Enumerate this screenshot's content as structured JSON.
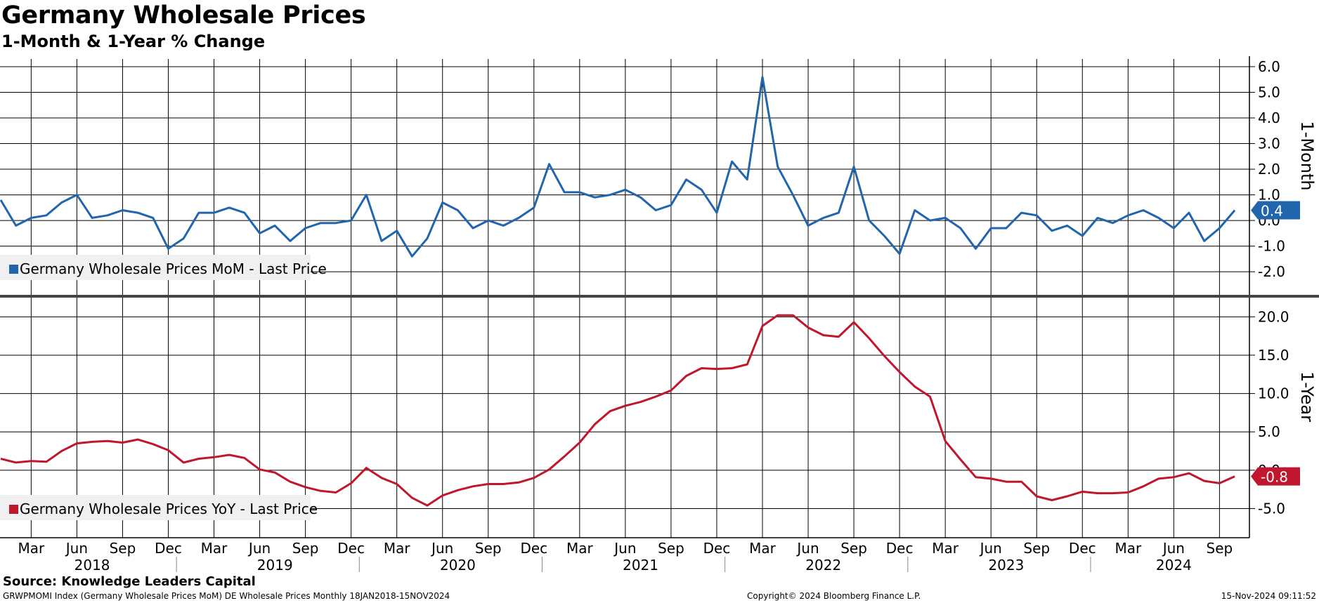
{
  "header": {
    "title": "Germany Wholesale Prices",
    "subtitle": "1-Month & 1-Year % Change"
  },
  "footer": {
    "source": "Source: Knowledge Leaders Capital",
    "ticker_line": "GRWPMOMI Index (Germany Wholesale Prices MoM) DE Wholesale Prices  Monthly 18JAN2018-15NOV2024",
    "copyright": "Copyright© 2024 Bloomberg Finance L.P.",
    "timestamp": "15-Nov-2024 09:11:52"
  },
  "colors": {
    "mom": "#2166ac",
    "yoy": "#c0172e",
    "grid": "#000000"
  },
  "chart_data": [
    {
      "type": "line",
      "ylabel": "1-Month",
      "ylim": [
        -2.9,
        6.3
      ],
      "yticks": [
        6.0,
        5.0,
        4.0,
        3.0,
        2.0,
        1.0,
        0.0,
        -1.0,
        -2.0
      ],
      "legend": "Germany Wholesale Prices MoM - Last Price",
      "legend_placement": "bottom-left",
      "last_value_label": "0.4",
      "x": [
        "2018-01",
        "2018-02",
        "2018-03",
        "2018-04",
        "2018-05",
        "2018-06",
        "2018-07",
        "2018-08",
        "2018-09",
        "2018-10",
        "2018-11",
        "2018-12",
        "2019-01",
        "2019-02",
        "2019-03",
        "2019-04",
        "2019-05",
        "2019-06",
        "2019-07",
        "2019-08",
        "2019-09",
        "2019-10",
        "2019-11",
        "2019-12",
        "2020-01",
        "2020-02",
        "2020-03",
        "2020-04",
        "2020-05",
        "2020-06",
        "2020-07",
        "2020-08",
        "2020-09",
        "2020-10",
        "2020-11",
        "2020-12",
        "2021-01",
        "2021-02",
        "2021-03",
        "2021-04",
        "2021-05",
        "2021-06",
        "2021-07",
        "2021-08",
        "2021-09",
        "2021-10",
        "2021-11",
        "2021-12",
        "2022-01",
        "2022-02",
        "2022-03",
        "2022-04",
        "2022-05",
        "2022-06",
        "2022-07",
        "2022-08",
        "2022-09",
        "2022-10",
        "2022-11",
        "2022-12",
        "2023-01",
        "2023-02",
        "2023-03",
        "2023-04",
        "2023-05",
        "2023-06",
        "2023-07",
        "2023-08",
        "2023-09",
        "2023-10",
        "2023-11",
        "2023-12",
        "2024-01",
        "2024-02",
        "2024-03",
        "2024-04",
        "2024-05",
        "2024-06",
        "2024-07",
        "2024-08",
        "2024-09",
        "2024-10"
      ],
      "series": [
        {
          "values": [
            0.8,
            -0.2,
            0.1,
            0.2,
            0.7,
            1.0,
            0.1,
            0.2,
            0.4,
            0.3,
            0.1,
            -1.1,
            -0.7,
            0.3,
            0.3,
            0.5,
            0.3,
            -0.5,
            -0.2,
            -0.8,
            -0.3,
            -0.1,
            -0.1,
            0.0,
            1.0,
            -0.8,
            -0.4,
            -1.4,
            -0.7,
            0.7,
            0.4,
            -0.3,
            0.0,
            -0.2,
            0.1,
            0.5,
            2.2,
            1.1,
            1.1,
            0.9,
            1.0,
            1.2,
            0.9,
            0.4,
            0.6,
            1.6,
            1.2,
            0.3,
            2.3,
            1.6,
            5.6,
            2.1,
            1.0,
            -0.2,
            0.1,
            0.3,
            2.1,
            0.0,
            -0.6,
            -1.3,
            0.4,
            0.0,
            0.1,
            -0.3,
            -1.1,
            -0.3,
            -0.3,
            0.3,
            0.2,
            -0.4,
            -0.2,
            -0.6,
            0.1,
            -0.1,
            0.2,
            0.4,
            0.1,
            -0.3,
            0.3,
            -0.8,
            -0.3,
            0.4
          ]
        }
      ]
    },
    {
      "type": "line",
      "ylabel": "1-Year",
      "ylim": [
        -8.8,
        22.5
      ],
      "yticks": [
        20.0,
        15.0,
        10.0,
        5.0,
        0.0,
        -5.0
      ],
      "legend": "Germany Wholesale Prices YoY - Last Price",
      "legend_placement": "bottom-left",
      "last_value_label": "-0.8",
      "x": [
        "2018-01",
        "2018-02",
        "2018-03",
        "2018-04",
        "2018-05",
        "2018-06",
        "2018-07",
        "2018-08",
        "2018-09",
        "2018-10",
        "2018-11",
        "2018-12",
        "2019-01",
        "2019-02",
        "2019-03",
        "2019-04",
        "2019-05",
        "2019-06",
        "2019-07",
        "2019-08",
        "2019-09",
        "2019-10",
        "2019-11",
        "2019-12",
        "2020-01",
        "2020-02",
        "2020-03",
        "2020-04",
        "2020-05",
        "2020-06",
        "2020-07",
        "2020-08",
        "2020-09",
        "2020-10",
        "2020-11",
        "2020-12",
        "2021-01",
        "2021-02",
        "2021-03",
        "2021-04",
        "2021-05",
        "2021-06",
        "2021-07",
        "2021-08",
        "2021-09",
        "2021-10",
        "2021-11",
        "2021-12",
        "2022-01",
        "2022-02",
        "2022-03",
        "2022-04",
        "2022-05",
        "2022-06",
        "2022-07",
        "2022-08",
        "2022-09",
        "2022-10",
        "2022-11",
        "2022-12",
        "2023-01",
        "2023-02",
        "2023-03",
        "2023-04",
        "2023-05",
        "2023-06",
        "2023-07",
        "2023-08",
        "2023-09",
        "2023-10",
        "2023-11",
        "2023-12",
        "2024-01",
        "2024-02",
        "2024-03",
        "2024-04",
        "2024-05",
        "2024-06",
        "2024-07",
        "2024-08",
        "2024-09",
        "2024-10"
      ],
      "series": [
        {
          "values": [
            1.5,
            1.0,
            1.2,
            1.1,
            2.5,
            3.5,
            3.7,
            3.8,
            3.6,
            4.0,
            3.4,
            2.6,
            1.0,
            1.5,
            1.7,
            2.0,
            1.6,
            0.1,
            -0.3,
            -1.5,
            -2.2,
            -2.7,
            -2.9,
            -1.7,
            0.3,
            -1.0,
            -1.8,
            -3.6,
            -4.6,
            -3.3,
            -2.6,
            -2.1,
            -1.8,
            -1.8,
            -1.6,
            -1.0,
            0.1,
            1.8,
            3.6,
            6.0,
            7.7,
            8.4,
            8.9,
            9.6,
            10.4,
            12.3,
            13.3,
            13.2,
            13.3,
            13.8,
            18.8,
            20.2,
            20.2,
            18.6,
            17.6,
            17.4,
            19.3,
            17.2,
            14.9,
            12.8,
            10.9,
            9.6,
            3.8,
            1.4,
            -0.9,
            -1.1,
            -1.5,
            -1.5,
            -3.4,
            -3.9,
            -3.4,
            -2.8,
            -3.0,
            -3.0,
            -2.9,
            -2.1,
            -1.1,
            -0.9,
            -0.4,
            -1.4,
            -1.7,
            -0.8
          ]
        }
      ]
    }
  ],
  "x_axis": {
    "months": [
      {
        "idx": 2,
        "label": "Mar"
      },
      {
        "idx": 5,
        "label": "Jun"
      },
      {
        "idx": 8,
        "label": "Sep"
      },
      {
        "idx": 11,
        "label": "Dec"
      },
      {
        "idx": 14,
        "label": "Mar"
      },
      {
        "idx": 17,
        "label": "Jun"
      },
      {
        "idx": 20,
        "label": "Sep"
      },
      {
        "idx": 23,
        "label": "Dec"
      },
      {
        "idx": 26,
        "label": "Mar"
      },
      {
        "idx": 29,
        "label": "Jun"
      },
      {
        "idx": 32,
        "label": "Sep"
      },
      {
        "idx": 35,
        "label": "Dec"
      },
      {
        "idx": 38,
        "label": "Mar"
      },
      {
        "idx": 41,
        "label": "Jun"
      },
      {
        "idx": 44,
        "label": "Sep"
      },
      {
        "idx": 47,
        "label": "Dec"
      },
      {
        "idx": 50,
        "label": "Mar"
      },
      {
        "idx": 53,
        "label": "Jun"
      },
      {
        "idx": 56,
        "label": "Sep"
      },
      {
        "idx": 59,
        "label": "Dec"
      },
      {
        "idx": 62,
        "label": "Mar"
      },
      {
        "idx": 65,
        "label": "Jun"
      },
      {
        "idx": 68,
        "label": "Sep"
      },
      {
        "idx": 71,
        "label": "Dec"
      },
      {
        "idx": 74,
        "label": "Mar"
      },
      {
        "idx": 77,
        "label": "Jun"
      },
      {
        "idx": 80,
        "label": "Sep"
      }
    ],
    "years": [
      {
        "label": "2018",
        "start": 0,
        "end": 12
      },
      {
        "label": "2019",
        "start": 12,
        "end": 24
      },
      {
        "label": "2020",
        "start": 24,
        "end": 36
      },
      {
        "label": "2021",
        "start": 36,
        "end": 48
      },
      {
        "label": "2022",
        "start": 48,
        "end": 60
      },
      {
        "label": "2023",
        "start": 60,
        "end": 72
      },
      {
        "label": "2024",
        "start": 72,
        "end": 82
      }
    ]
  }
}
